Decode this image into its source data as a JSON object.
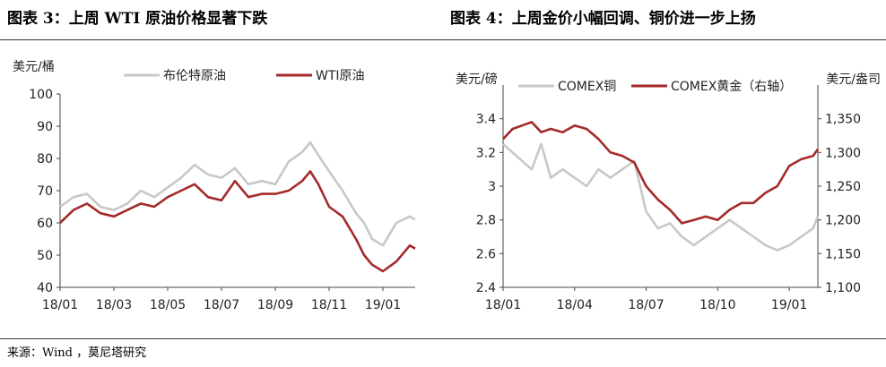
{
  "page": {
    "left_title": "图表 3：上周 WTI 原油价格显著下跌",
    "right_title": "图表 4：上周金价小幅回调、铜价进一步上扬",
    "source": "来源：Wind ，莫尼塔研究"
  },
  "chart_data": [
    {
      "type": "line",
      "title": "图表 3：上周 WTI 原油价格显著下跌",
      "ylabel": "美元/桶",
      "ylim": [
        40,
        100
      ],
      "yticks": [
        40,
        50,
        60,
        70,
        80,
        90,
        100
      ],
      "x_range": [
        0,
        13.2
      ],
      "xtick_pos": [
        0,
        2,
        4,
        6,
        8,
        10,
        12
      ],
      "xticks": [
        "18/01",
        "18/03",
        "18/05",
        "18/07",
        "18/09",
        "18/11",
        "19/01"
      ],
      "grid": false,
      "legend": "top",
      "series": [
        {
          "name": "布伦特原油",
          "color": "#c8c8c8",
          "x": [
            0,
            0.5,
            1,
            1.5,
            2,
            2.5,
            3,
            3.5,
            4,
            4.5,
            5,
            5.5,
            6,
            6.5,
            7,
            7.5,
            8,
            8.5,
            9,
            9.3,
            9.6,
            10,
            10.5,
            11,
            11.3,
            11.6,
            12,
            12.5,
            13,
            13.2
          ],
          "values": [
            65,
            68,
            69,
            65,
            64,
            66,
            70,
            68,
            71,
            74,
            78,
            75,
            74,
            77,
            72,
            73,
            72,
            79,
            82,
            85,
            81,
            76,
            70,
            63,
            60,
            55,
            53,
            60,
            62,
            61
          ]
        },
        {
          "name": "WTI原油",
          "color": "#a52a2a",
          "x": [
            0,
            0.5,
            1,
            1.5,
            2,
            2.5,
            3,
            3.5,
            4,
            4.5,
            5,
            5.5,
            6,
            6.5,
            7,
            7.5,
            8,
            8.5,
            9,
            9.3,
            9.6,
            10,
            10.5,
            11,
            11.3,
            11.6,
            12,
            12.5,
            13,
            13.2
          ],
          "values": [
            60,
            64,
            66,
            63,
            62,
            64,
            66,
            65,
            68,
            70,
            72,
            68,
            67,
            73,
            68,
            69,
            69,
            70,
            73,
            76,
            72,
            65,
            62,
            55,
            50,
            47,
            45,
            48,
            53,
            52
          ]
        }
      ]
    },
    {
      "type": "line",
      "title": "图表 4：上周金价小幅回调、铜价进一步上扬",
      "ylabel": "美元/磅",
      "y2label": "美元/盎司",
      "ylim": [
        2.4,
        3.6
      ],
      "yticks": [
        2.4,
        2.6,
        2.8,
        3.0,
        3.2,
        3.4
      ],
      "y2lim": [
        1100,
        1400
      ],
      "y2ticks": [
        1100,
        1150,
        1200,
        1250,
        1300,
        1350
      ],
      "y2tick_labels": [
        "1,100",
        "1,150",
        "1,200",
        "1,250",
        "1,300",
        "1,350"
      ],
      "x_range": [
        0,
        13.2
      ],
      "xtick_pos": [
        0,
        3,
        6,
        9,
        12
      ],
      "xticks": [
        "18/01",
        "18/04",
        "18/07",
        "18/10",
        "19/01"
      ],
      "grid": false,
      "legend": "top",
      "series": [
        {
          "name": "COMEX铜",
          "axis": "left",
          "color": "#c8c8c8",
          "x": [
            0,
            0.4,
            0.8,
            1.2,
            1.6,
            2,
            2.5,
            3,
            3.5,
            4,
            4.5,
            5,
            5.5,
            6,
            6.5,
            7,
            7.5,
            8,
            8.5,
            9,
            9.5,
            10,
            10.5,
            11,
            11.5,
            12,
            12.5,
            13,
            13.2
          ],
          "values": [
            3.25,
            3.2,
            3.15,
            3.1,
            3.25,
            3.05,
            3.1,
            3.05,
            3.0,
            3.1,
            3.05,
            3.1,
            3.15,
            2.85,
            2.75,
            2.78,
            2.7,
            2.65,
            2.7,
            2.75,
            2.8,
            2.75,
            2.7,
            2.65,
            2.62,
            2.65,
            2.7,
            2.75,
            2.82
          ]
        },
        {
          "name": "COMEX黄金（右轴）",
          "axis": "right",
          "color": "#a52a2a",
          "x": [
            0,
            0.4,
            0.8,
            1.2,
            1.6,
            2,
            2.5,
            3,
            3.5,
            4,
            4.5,
            5,
            5.5,
            6,
            6.5,
            7,
            7.5,
            8,
            8.5,
            9,
            9.5,
            10,
            10.5,
            11,
            11.5,
            12,
            12.5,
            13,
            13.2
          ],
          "values": [
            1320,
            1335,
            1340,
            1345,
            1330,
            1335,
            1330,
            1340,
            1335,
            1320,
            1300,
            1295,
            1285,
            1250,
            1230,
            1215,
            1195,
            1200,
            1205,
            1200,
            1215,
            1225,
            1225,
            1240,
            1250,
            1280,
            1290,
            1295,
            1305
          ]
        }
      ]
    }
  ]
}
